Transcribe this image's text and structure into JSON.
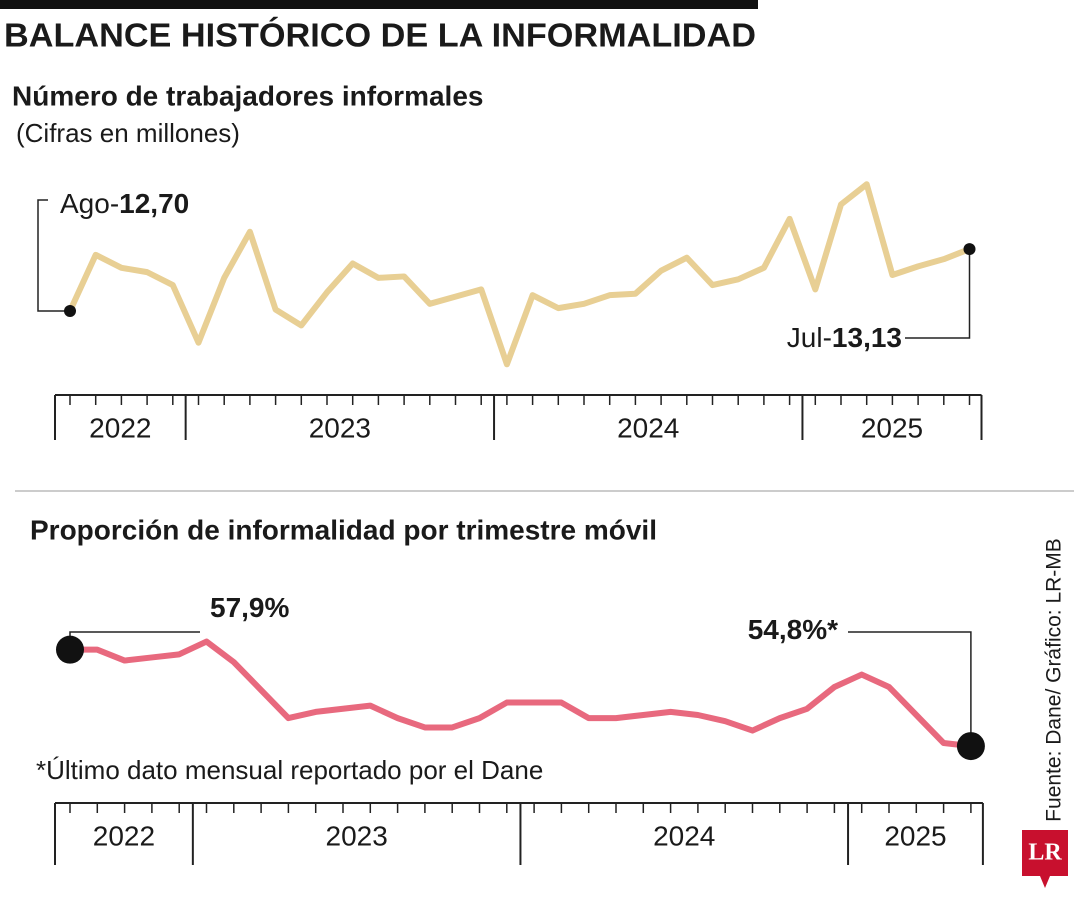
{
  "header": {
    "title": "BALANCE HISTÓRICO DE LA INFORMALIDAD"
  },
  "chart_data": [
    {
      "type": "line",
      "title": "Número de trabajadores informales",
      "subtitle": "(Cifras en millones)",
      "x": [
        "2022",
        "2022",
        "2022",
        "2022",
        "2022",
        "2023",
        "2023",
        "2023",
        "2023",
        "2023",
        "2023",
        "2023",
        "2023",
        "2023",
        "2023",
        "2023",
        "2023",
        "2024",
        "2024",
        "2024",
        "2024",
        "2024",
        "2024",
        "2024",
        "2024",
        "2024",
        "2024",
        "2024",
        "2024",
        "2025",
        "2025",
        "2025",
        "2025",
        "2025",
        "2025",
        "2025"
      ],
      "values": [
        12.7,
        13.09,
        13.0,
        12.97,
        12.88,
        12.48,
        12.93,
        13.25,
        12.71,
        12.6,
        12.83,
        13.03,
        12.93,
        12.94,
        12.75,
        12.8,
        12.85,
        12.33,
        12.81,
        12.72,
        12.75,
        12.81,
        12.82,
        12.98,
        13.07,
        12.88,
        12.92,
        13.0,
        13.34,
        12.85,
        13.44,
        13.58,
        12.95,
        13.01,
        13.06,
        13.13
      ],
      "value_labels": [
        "Ago-12,70",
        null,
        null,
        null,
        null,
        null,
        null,
        null,
        null,
        null,
        null,
        null,
        null,
        null,
        null,
        null,
        null,
        null,
        null,
        null,
        null,
        null,
        null,
        null,
        null,
        null,
        null,
        null,
        null,
        null,
        null,
        null,
        null,
        null,
        null,
        "Jul-13,13"
      ],
      "color": "#e8cf94",
      "ylim": [
        12.2,
        13.7
      ]
    },
    {
      "type": "line",
      "title": "Proporción de informalidad por trimestre móvil",
      "x": [
        "2022",
        "2022",
        "2022",
        "2022",
        "2022",
        "2023",
        "2023",
        "2023",
        "2023",
        "2023",
        "2023",
        "2023",
        "2023",
        "2023",
        "2023",
        "2023",
        "2023",
        "2024",
        "2024",
        "2024",
        "2024",
        "2024",
        "2024",
        "2024",
        "2024",
        "2024",
        "2024",
        "2024",
        "2024",
        "2025",
        "2025",
        "2025",
        "2025",
        "2025"
      ],
      "values": [
        57.9,
        57.9,
        57.55,
        57.65,
        57.75,
        58.16,
        57.5,
        56.6,
        55.7,
        55.9,
        56.0,
        56.1,
        55.7,
        55.4,
        55.4,
        55.7,
        56.2,
        56.2,
        56.2,
        55.7,
        55.7,
        55.8,
        55.9,
        55.8,
        55.6,
        55.3,
        55.7,
        56.0,
        56.7,
        57.1,
        56.7,
        55.8,
        54.9,
        54.8
      ],
      "value_labels": [
        "57,9%",
        null,
        null,
        null,
        null,
        null,
        null,
        null,
        null,
        null,
        null,
        null,
        null,
        null,
        null,
        null,
        null,
        null,
        null,
        null,
        null,
        null,
        null,
        null,
        null,
        null,
        null,
        null,
        null,
        null,
        null,
        null,
        null,
        "54,8%*"
      ],
      "color": "#e8697e",
      "ylim": [
        54.0,
        58.5
      ],
      "note": "*Último dato mensual reportado por el Dane"
    }
  ],
  "source": "Fuente: Dane/ Gráfico: LR-MB",
  "logo": "LR"
}
